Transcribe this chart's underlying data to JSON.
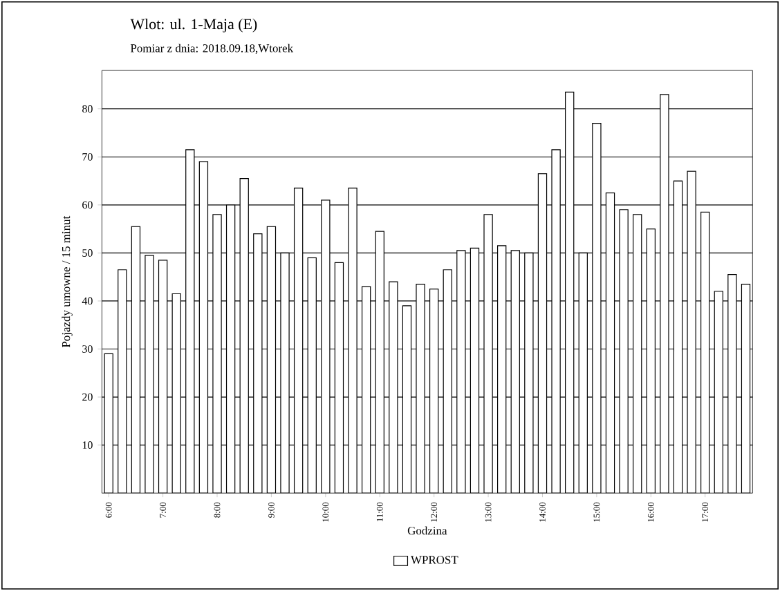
{
  "chart_data": {
    "type": "bar",
    "title": "Wlot: ul. 1-Maja (E)",
    "subtitle": "Pomiar z dnia: 2018.09.18,Wtorek",
    "xlabel": "Godzina",
    "ylabel": "Pojazdy umowne / 15 minut",
    "categories": [
      "6:00",
      null,
      null,
      null,
      "7:00",
      null,
      null,
      null,
      "8:00",
      null,
      null,
      null,
      "9:00",
      null,
      null,
      null,
      "10:00",
      null,
      null,
      null,
      "11:00",
      null,
      null,
      null,
      "12:00",
      null,
      null,
      null,
      "13:00",
      null,
      null,
      null,
      "14:00",
      null,
      null,
      null,
      "15:00",
      null,
      null,
      null,
      "16:00",
      null,
      null,
      null,
      "17:00",
      null,
      null,
      null
    ],
    "series": [
      {
        "name": "WPROST",
        "color": "#ffffff",
        "values": [
          29,
          46.5,
          55.5,
          49.5,
          48.5,
          41.5,
          71.5,
          69,
          58,
          60,
          65.5,
          54,
          55.5,
          50,
          63.5,
          49,
          61,
          48,
          63.5,
          43,
          54.5,
          44,
          39,
          43.5,
          42.5,
          46.5,
          50.5,
          51,
          58,
          51.5,
          50.5,
          50,
          66.5,
          71.5,
          83.5,
          50,
          77,
          62.5,
          59,
          58,
          55,
          83,
          65,
          67,
          58.5,
          42,
          45.5,
          43.5
        ]
      }
    ],
    "ylim": [
      0,
      88
    ],
    "yticks": [
      10,
      20,
      30,
      40,
      50,
      60,
      70,
      80
    ],
    "grid": "y",
    "legend": "bottom"
  }
}
